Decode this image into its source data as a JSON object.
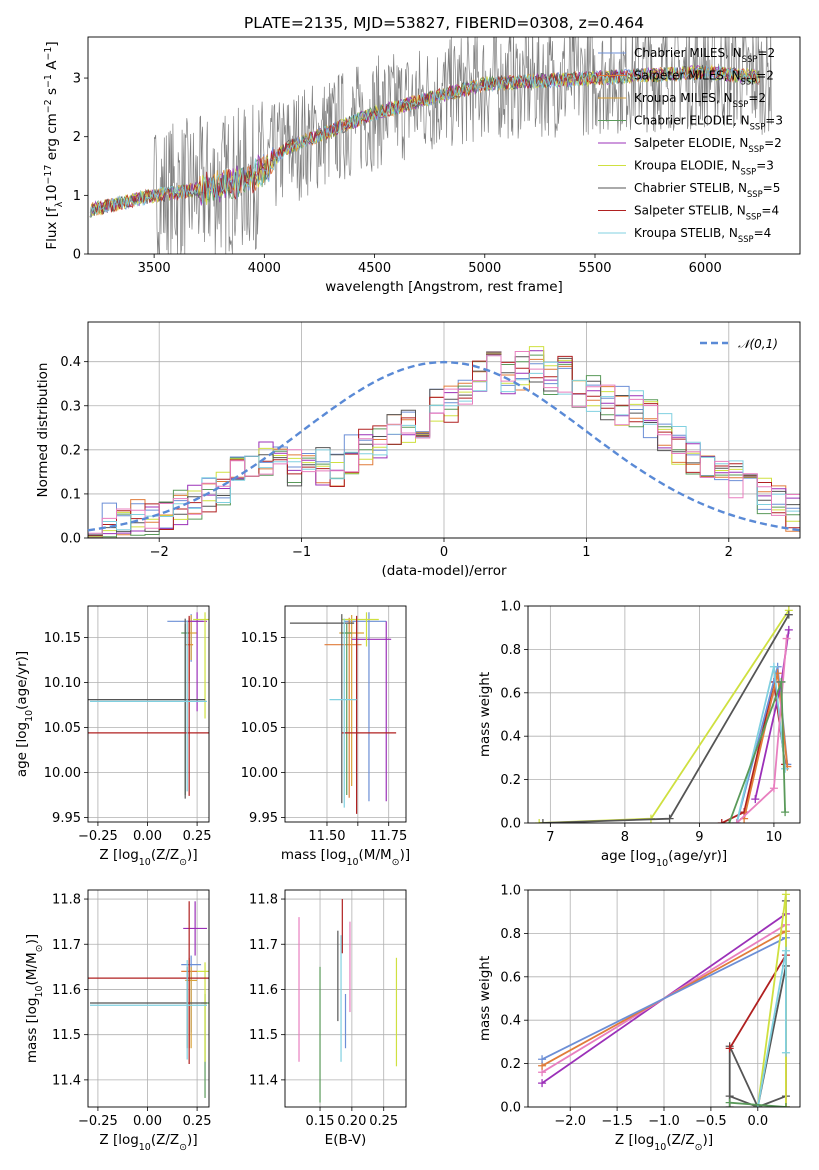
{
  "figure_title": "PLATE=2135, MJD=53827, FIBERID=0308, z=0.464",
  "colors": {
    "Chabrier MILES": "#6c8fd6",
    "Salpeter MILES": "#e07c3a",
    "Kroupa MILES": "#d8a23a",
    "Chabrier ELODIE": "#5a9a5a",
    "Salpeter ELODIE": "#9b30b8",
    "Kroupa ELODIE": "#cfe040",
    "Chabrier STELIB": "#555555",
    "Salpeter STELIB": "#b02020",
    "Kroupa STELIB": "#80d0e0",
    "Pink": "#e87fbf",
    "data": "#808080"
  },
  "chart_data": [
    {
      "id": "spectrum",
      "type": "line",
      "xlabel": "wavelength [Angstrom, rest frame]",
      "ylabel_parts": [
        "Flux [f",
        "λ",
        "10",
        "−17",
        " erg cm",
        "−2",
        " s",
        "−1",
        " A",
        "−1",
        "]"
      ],
      "xlim": [
        3200,
        6430
      ],
      "ylim": [
        0,
        3.7
      ],
      "xticks": [
        3500,
        4000,
        4500,
        5000,
        5500,
        6000
      ],
      "yticks": [
        0,
        1,
        2,
        3
      ],
      "legend": [
        {
          "base": "Chabrier MILES, N",
          "nssp": "2"
        },
        {
          "base": "Salpeter MILES, N",
          "nssp": "2"
        },
        {
          "base": "Kroupa MILES, N",
          "nssp": "2"
        },
        {
          "base": "Chabrier ELODIE, N",
          "nssp": "3"
        },
        {
          "base": "Salpeter ELODIE, N",
          "nssp": "2"
        },
        {
          "base": "Kroupa ELODIE, N",
          "nssp": "3"
        },
        {
          "base": "Chabrier STELIB, N",
          "nssp": "5"
        },
        {
          "base": "Salpeter STELIB, N",
          "nssp": "4"
        },
        {
          "base": "Kroupa STELIB, N",
          "nssp": "4"
        }
      ],
      "legend_subscript": "SSP",
      "continuum_model": [
        [
          3210,
          0.75
        ],
        [
          3500,
          1.0
        ],
        [
          3700,
          1.1
        ],
        [
          3950,
          1.3
        ],
        [
          4100,
          1.8
        ],
        [
          4500,
          2.4
        ],
        [
          5000,
          2.9
        ],
        [
          5500,
          3.0
        ],
        [
          6000,
          3.1
        ],
        [
          6300,
          3.0
        ]
      ]
    },
    {
      "id": "residuals",
      "type": "histogram",
      "xlabel": "(data-model)/error",
      "ylabel": "Normed distribution",
      "xlim": [
        -2.5,
        2.5
      ],
      "ylim": [
        0,
        0.49
      ],
      "xticks": [
        -2,
        -1,
        0,
        1,
        2
      ],
      "yticks": [
        0.0,
        0.1,
        0.2,
        0.3,
        0.4
      ],
      "bin_edges_start": -2.5,
      "bin_width": 0.1,
      "reference_curve": {
        "label": "𝒩(0,1)",
        "mean": 0,
        "sigma": 1
      },
      "series_base": [
        0.04,
        0.04,
        0.04,
        0.05,
        0.05,
        0.06,
        0.07,
        0.08,
        0.1,
        0.12,
        0.14,
        0.17,
        0.18,
        0.17,
        0.16,
        0.18,
        0.16,
        0.15,
        0.19,
        0.21,
        0.22,
        0.24,
        0.25,
        0.27,
        0.3,
        0.3,
        0.33,
        0.36,
        0.38,
        0.37,
        0.38,
        0.39,
        0.36,
        0.37,
        0.34,
        0.33,
        0.31,
        0.3,
        0.29,
        0.27,
        0.24,
        0.21,
        0.18,
        0.16,
        0.14,
        0.13,
        0.11,
        0.1,
        0.08,
        0.06
      ]
    },
    {
      "id": "age_vs_Z",
      "type": "scatter",
      "xlabel_parts": [
        "Z [log",
        "10",
        "(Z/Z",
        "⊙",
        ")]"
      ],
      "ylabel_parts": [
        "age  [log",
        "10",
        "(age/yr)]"
      ],
      "xlim": [
        -0.3,
        0.31
      ],
      "ylim": [
        9.945,
        10.185
      ],
      "xticks": [
        -0.25,
        0.0,
        0.25
      ],
      "yticks": [
        9.95,
        10.0,
        10.05,
        10.1,
        10.15
      ],
      "points": [
        {
          "series": "Chabrier MILES",
          "x": 0.22,
          "y": 10.168,
          "xerr": [
            0.12,
            0.06
          ],
          "yerr": [
            0.045,
            0.008
          ]
        },
        {
          "series": "Salpeter MILES",
          "x": 0.21,
          "y": 10.142,
          "xerr": [
            0.02,
            0.02
          ],
          "yerr": [
            0.04,
            0.03
          ]
        },
        {
          "series": "Kroupa MILES",
          "x": 0.22,
          "y": 10.155,
          "xerr": [
            0.03,
            0.03
          ],
          "yerr": [
            0.03,
            0.02
          ]
        },
        {
          "series": "Chabrier ELODIE",
          "x": 0.19,
          "y": 10.155,
          "xerr": [
            0.02,
            0.02
          ],
          "yerr": [
            0.18,
            0.01
          ]
        },
        {
          "series": "Salpeter ELODIE",
          "x": 0.25,
          "y": 10.168,
          "xerr": [
            0.05,
            0.05
          ],
          "yerr": [
            0.1,
            0.01
          ]
        },
        {
          "series": "Kroupa ELODIE",
          "x": 0.29,
          "y": 10.17,
          "xerr": [
            0.06,
            0.02
          ],
          "yerr": [
            0.11,
            0.008
          ]
        },
        {
          "series": "Chabrier STELIB",
          "x": 0.19,
          "y": 10.081,
          "xerr": [
            0.49,
            0.1
          ],
          "yerr": [
            0.11,
            0.09
          ]
        },
        {
          "series": "Salpeter STELIB",
          "x": 0.21,
          "y": 10.044,
          "xerr": [
            0.51,
            0.1
          ],
          "yerr": [
            0.07,
            0.13
          ]
        },
        {
          "series": "Kroupa STELIB",
          "x": 0.2,
          "y": 10.079,
          "xerr": [
            0.49,
            0.1
          ],
          "yerr": [
            0.1,
            0.09
          ]
        }
      ]
    },
    {
      "id": "age_vs_mass",
      "type": "scatter",
      "xlabel_parts": [
        "mass [log",
        "10",
        "(M/M",
        "⊙",
        ")]"
      ],
      "ylabel_parts": [],
      "xlim": [
        11.33,
        11.82
      ],
      "ylim": [
        9.945,
        10.185
      ],
      "xticks": [
        11.5,
        11.625,
        11.75
      ],
      "xticklabels": [
        "11.50",
        "",
        "11.75"
      ],
      "yticks": [
        9.95,
        10.0,
        10.05,
        10.1,
        10.15
      ],
      "points": [
        {
          "series": "Chabrier MILES",
          "x": 11.67,
          "y": 10.168,
          "xerr": [
            0.1,
            0.07
          ],
          "yerr": [
            0.2,
            0.01
          ]
        },
        {
          "series": "Salpeter MILES",
          "x": 11.59,
          "y": 10.142,
          "xerr": [
            0.1,
            0.05
          ],
          "yerr": [
            0.17,
            0.03
          ]
        },
        {
          "series": "Kroupa MILES",
          "x": 11.6,
          "y": 10.155,
          "xerr": [
            0.05,
            0.05
          ],
          "yerr": [
            0.17,
            0.02
          ]
        },
        {
          "series": "Chabrier ELODIE",
          "x": 11.58,
          "y": 10.155,
          "xerr": [
            0.02,
            0.02
          ],
          "yerr": [
            0.18,
            0.01
          ]
        },
        {
          "series": "Salpeter ELODIE",
          "x": 11.74,
          "y": 10.148,
          "xerr": [
            0.14,
            0.02
          ],
          "yerr": [
            0.18,
            0.02
          ]
        },
        {
          "series": "Kroupa ELODIE",
          "x": 11.66,
          "y": 10.17,
          "xerr": [
            0.1,
            0.05
          ],
          "yerr": [
            0.03,
            0.008
          ]
        },
        {
          "series": "Chabrier STELIB",
          "x": 11.56,
          "y": 10.166,
          "xerr": [
            0.21,
            0.05
          ],
          "yerr": [
            0.2,
            0.01
          ]
        },
        {
          "series": "Salpeter STELIB",
          "x": 11.62,
          "y": 10.044,
          "xerr": [
            0.06,
            0.16
          ],
          "yerr": [
            0.09,
            0.13
          ]
        },
        {
          "series": "Kroupa STELIB",
          "x": 11.57,
          "y": 10.081,
          "xerr": [
            0.06,
            0.05
          ],
          "yerr": [
            0.12,
            0.09
          ]
        }
      ]
    },
    {
      "id": "massweight_vs_age",
      "type": "line",
      "xlabel_parts": [
        "age  [log",
        "10",
        "(age/yr)]"
      ],
      "ylabel": "mass weight",
      "xlim": [
        6.7,
        10.35
      ],
      "ylim": [
        0,
        1.0
      ],
      "xticks": [
        7,
        8,
        9,
        10
      ],
      "yticks": [
        0.0,
        0.2,
        0.4,
        0.6,
        0.8,
        1.0
      ],
      "series": [
        {
          "name": "Kroupa ELODIE",
          "x": [
            6.85,
            8.35,
            10.2
          ],
          "y": [
            0.0,
            0.02,
            0.98
          ]
        },
        {
          "name": "Chabrier STELIB",
          "x": [
            6.9,
            8.6,
            10.2
          ],
          "y": [
            0.0,
            0.02,
            0.96
          ]
        },
        {
          "name": "Salpeter STELIB",
          "x": [
            9.3,
            9.6,
            10.0,
            10.15
          ],
          "y": [
            0.0,
            0.05,
            0.65,
            0.27
          ]
        },
        {
          "name": "Chabrier MILES",
          "x": [
            9.5,
            10.05,
            10.18
          ],
          "y": [
            0.0,
            0.72,
            0.27
          ]
        },
        {
          "name": "Salpeter MILES",
          "x": [
            9.6,
            10.05,
            10.18
          ],
          "y": [
            0.02,
            0.69,
            0.26
          ]
        },
        {
          "name": "Salpeter ELODIE",
          "x": [
            9.75,
            10.1,
            10.2
          ],
          "y": [
            0.11,
            0.65,
            0.89
          ]
        },
        {
          "name": "Kroupa STELIB",
          "x": [
            9.5,
            10.0,
            10.15
          ],
          "y": [
            0.0,
            0.72,
            0.25
          ]
        },
        {
          "name": "Pink",
          "x": [
            9.5,
            10.0,
            10.17
          ],
          "y": [
            0.0,
            0.16,
            0.85
          ]
        },
        {
          "name": "Chabrier ELODIE",
          "x": [
            9.4,
            10.1,
            10.15
          ],
          "y": [
            0.0,
            0.65,
            0.05
          ]
        }
      ]
    },
    {
      "id": "mass_vs_Z",
      "type": "scatter",
      "xlabel_parts": [
        "Z [log",
        "10",
        "(Z/Z",
        "⊙",
        ")]"
      ],
      "ylabel_parts": [
        "mass [log",
        "10",
        "(M/M",
        "⊙",
        ")]"
      ],
      "xlim": [
        -0.3,
        0.31
      ],
      "ylim": [
        11.34,
        11.82
      ],
      "xticks": [
        -0.25,
        0.0,
        0.25
      ],
      "yticks": [
        11.4,
        11.5,
        11.6,
        11.7,
        11.8
      ],
      "points": [
        {
          "series": "Chabrier MILES",
          "x": 0.22,
          "y": 11.655,
          "xerr": [
            0.05,
            0.05
          ],
          "yerr": [
            0.15,
            0.02
          ]
        },
        {
          "series": "Salpeter MILES",
          "x": 0.21,
          "y": 11.64,
          "xerr": [
            0.04,
            0.04
          ],
          "yerr": [
            0.17,
            0.03
          ]
        },
        {
          "series": "Kroupa MILES",
          "x": 0.22,
          "y": 11.62,
          "xerr": [
            0.03,
            0.03
          ],
          "yerr": [
            0.15,
            0.03
          ]
        },
        {
          "series": "Chabrier ELODIE",
          "x": 0.29,
          "y": 11.57,
          "xerr": [
            0.02,
            0.02
          ],
          "yerr": [
            0.21,
            0.02
          ]
        },
        {
          "series": "Salpeter ELODIE",
          "x": 0.24,
          "y": 11.735,
          "xerr": [
            0.06,
            0.06
          ],
          "yerr": [
            0.06,
            0.06
          ]
        },
        {
          "series": "Kroupa ELODIE",
          "x": 0.29,
          "y": 11.64,
          "xerr": [
            0.04,
            0.02
          ],
          "yerr": [
            0.2,
            0.02
          ]
        },
        {
          "series": "Chabrier STELIB",
          "x": 0.2,
          "y": 11.57,
          "xerr": [
            0.49,
            0.1
          ],
          "yerr": [
            0.1,
            0.08
          ]
        },
        {
          "series": "Salpeter STELIB",
          "x": 0.21,
          "y": 11.625,
          "xerr": [
            0.51,
            0.1
          ],
          "yerr": [
            0.19,
            0.17
          ]
        },
        {
          "series": "Kroupa STELIB",
          "x": 0.2,
          "y": 11.565,
          "xerr": [
            0.49,
            0.1
          ],
          "yerr": [
            0.12,
            0.1
          ]
        }
      ]
    },
    {
      "id": "mass_vs_EBV",
      "type": "scatter",
      "xlabel": "E(B-V)",
      "xlim": [
        0.095,
        0.285
      ],
      "ylim": [
        11.34,
        11.82
      ],
      "xticks": [
        0.15,
        0.2,
        0.25
      ],
      "xticklabels": [
        "0.15",
        "0.20",
        "0.25"
      ],
      "yticks": [
        11.4,
        11.5,
        11.6,
        11.7,
        11.8
      ],
      "points": [
        {
          "series": "Pink",
          "x": 0.117,
          "y": 11.6,
          "yerr": [
            0.16,
            0.16
          ]
        },
        {
          "series": "Chabrier ELODIE",
          "x": 0.15,
          "y": 11.5,
          "yerr": [
            0.15,
            0.15
          ]
        },
        {
          "series": "Chabrier STELIB",
          "x": 0.178,
          "y": 11.63,
          "yerr": [
            0.1,
            0.1
          ]
        },
        {
          "series": "Kroupa STELIB",
          "x": 0.183,
          "y": 11.58,
          "yerr": [
            0.14,
            0.14
          ]
        },
        {
          "series": "Salpeter STELIB",
          "x": 0.185,
          "y": 11.74,
          "yerr": [
            0.06,
            0.06
          ]
        },
        {
          "series": "Chabrier MILES",
          "x": 0.19,
          "y": 11.53,
          "yerr": [
            0.06,
            0.06
          ]
        },
        {
          "series": "Pink",
          "x": 0.197,
          "y": 11.65,
          "yerr": [
            0.1,
            0.1
          ]
        },
        {
          "series": "Kroupa ELODIE",
          "x": 0.27,
          "y": 11.55,
          "yerr": [
            0.12,
            0.12
          ]
        }
      ]
    },
    {
      "id": "massweight_vs_Z",
      "type": "line",
      "xlabel_parts": [
        "Z [log",
        "10",
        "(Z/Z",
        "⊙",
        ")]"
      ],
      "ylabel": "mass weight",
      "xlim": [
        -2.45,
        0.45
      ],
      "ylim": [
        0,
        1.0
      ],
      "xticks": [
        -2.0,
        -1.5,
        -1.0,
        -0.5,
        0.0
      ],
      "xticklabels": [
        "−2.0",
        "−1.5",
        "−1.0",
        "−0.5",
        "0.0"
      ],
      "yticks": [
        0.0,
        0.2,
        0.4,
        0.6,
        0.8,
        1.0
      ],
      "series": [
        {
          "name": "Salpeter ELODIE",
          "x": [
            -2.3,
            0.3
          ],
          "y": [
            0.11,
            0.89
          ]
        },
        {
          "name": "Pink",
          "x": [
            -2.3,
            0.3
          ],
          "y": [
            0.16,
            0.84
          ]
        },
        {
          "name": "Salpeter MILES",
          "x": [
            -2.3,
            0.3
          ],
          "y": [
            0.19,
            0.81
          ]
        },
        {
          "name": "Chabrier MILES",
          "x": [
            -2.3,
            0.3
          ],
          "y": [
            0.22,
            0.78
          ]
        },
        {
          "name": "Chabrier STELIB",
          "x": [
            -0.3,
            -0.3,
            0.0,
            0.3,
            0.3
          ],
          "y": [
            0.0,
            0.28,
            0.0,
            0.65,
            0.95
          ]
        },
        {
          "name": "Chabrier STELIB",
          "x": [
            -0.3,
            0.0,
            0.3
          ],
          "y": [
            0.05,
            0.0,
            0.05
          ]
        },
        {
          "name": "Salpeter STELIB",
          "x": [
            -0.3,
            0.3,
            0.3
          ],
          "y": [
            0.27,
            0.7,
            0.0
          ]
        },
        {
          "name": "Kroupa ELODIE",
          "x": [
            0.0,
            0.3,
            0.3
          ],
          "y": [
            0.0,
            0.98,
            0.0
          ]
        },
        {
          "name": "Kroupa STELIB",
          "x": [
            0.0,
            0.3,
            0.3
          ],
          "y": [
            0.0,
            0.72,
            0.25
          ]
        },
        {
          "name": "Chabrier ELODIE",
          "x": [
            -0.3,
            0.3
          ],
          "y": [
            0.02,
            0.0
          ]
        }
      ]
    }
  ]
}
